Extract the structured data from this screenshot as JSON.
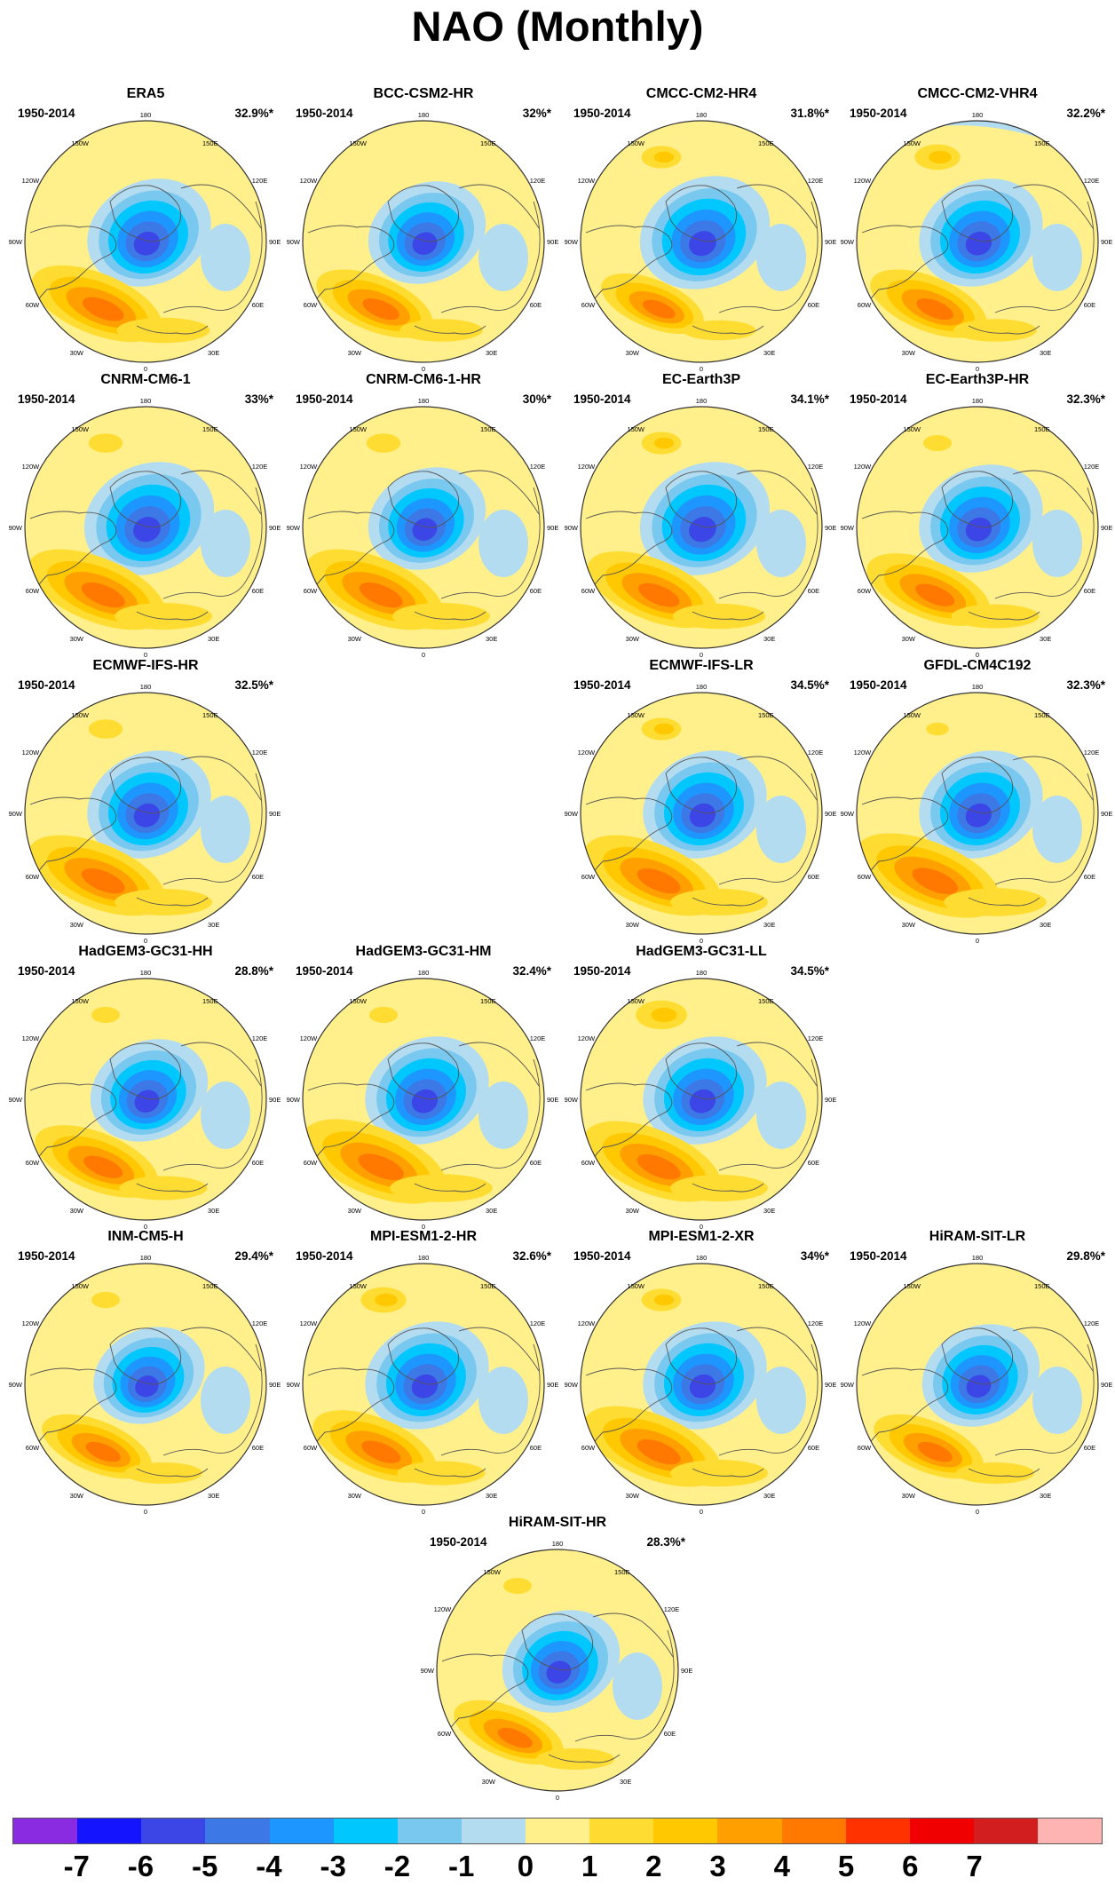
{
  "title": "NAO (Monthly)",
  "period": "1950-2014",
  "map_labels": {
    "top": "180",
    "bottom": "0",
    "upper_left": "150W",
    "upper_right": "150E",
    "left_upper": "120W",
    "right_upper": "120E",
    "left": "90W",
    "right": "90E",
    "left_lower": "60W",
    "right_lower": "60E",
    "lower_left": "30W",
    "lower_right": "30E"
  },
  "panels": [
    {
      "model": "ERA5",
      "pct": "32.9%*",
      "neg": 1.0,
      "pos": 0.95,
      "pac": 0.0,
      "pac_neg": 0.0
    },
    {
      "model": "BCC-CSM2-HR",
      "pct": "32%*",
      "neg": 0.95,
      "pos": 0.85,
      "pac": 0.0,
      "pac_neg": 0.0
    },
    {
      "model": "CMCC-CM2-HR4",
      "pct": "31.8%*",
      "neg": 1.05,
      "pos": 0.75,
      "pac": 0.7,
      "pac_neg": 0.0
    },
    {
      "model": "CMCC-CM2-VHR4",
      "pct": "32.2%*",
      "neg": 1.0,
      "pos": 0.85,
      "pac": 0.8,
      "pac_neg": 1.0
    },
    {
      "model": "CNRM-CM6-1",
      "pct": "33%*",
      "neg": 1.05,
      "pos": 1.0,
      "pac": 0.6,
      "pac_neg": 0.0
    },
    {
      "model": "CNRM-CM6-1-HR",
      "pct": "30%*",
      "neg": 0.95,
      "pos": 1.0,
      "pac": 0.6,
      "pac_neg": 0.0
    },
    {
      "model": "EC-Earth3P",
      "pct": "34.1%*",
      "neg": 1.05,
      "pos": 0.95,
      "pac": 0.7,
      "pac_neg": 0.0
    },
    {
      "model": "EC-Earth3P-HR",
      "pct": "32.3%*",
      "neg": 1.0,
      "pos": 0.9,
      "pac": 0.5,
      "pac_neg": 0.0
    },
    {
      "model": "ECMWF-IFS-HR",
      "pct": "32.5%*",
      "neg": 1.0,
      "pos": 1.0,
      "pac": 0.6,
      "pac_neg": 0.0
    },
    {
      "model": "ECMWF-IFS-LR",
      "pct": "34.5%*",
      "neg": 1.0,
      "pos": 1.0,
      "pac": 0.7,
      "pac_neg": 0.0
    },
    {
      "model": "GFDL-CM4C192",
      "pct": "32.3%*",
      "neg": 1.0,
      "pos": 1.05,
      "pac": 0.4,
      "pac_neg": 0.0
    },
    {
      "model": "HadGEM3-GC31-HH",
      "pct": "28.8%*",
      "neg": 0.95,
      "pos": 0.9,
      "pac": 0.5,
      "pac_neg": 0.0
    },
    {
      "model": "HadGEM3-GC31-HM",
      "pct": "32.4%*",
      "neg": 1.0,
      "pos": 1.05,
      "pac": 0.5,
      "pac_neg": 0.0
    },
    {
      "model": "HadGEM3-GC31-LL",
      "pct": "34.5%*",
      "neg": 1.0,
      "pos": 1.0,
      "pac": 0.9,
      "pac_neg": 0.0
    },
    {
      "model": "INM-CM5-H",
      "pct": "29.4%*",
      "neg": 0.9,
      "pos": 0.8,
      "pac": 0.5,
      "pac_neg": 0.0
    },
    {
      "model": "MPI-ESM1-2-HR",
      "pct": "32.6%*",
      "neg": 1.0,
      "pos": 0.9,
      "pac": 0.8,
      "pac_neg": 0.0
    },
    {
      "model": "MPI-ESM1-2-XR",
      "pct": "34%*",
      "neg": 1.0,
      "pos": 1.0,
      "pac": 0.7,
      "pac_neg": 0.0
    },
    {
      "model": "HiRAM-SIT-LR",
      "pct": "29.8%*",
      "neg": 0.95,
      "pos": 0.8,
      "pac": 0.0,
      "pac_neg": 0.0
    },
    {
      "model": "HiRAM-SIT-HR",
      "pct": "28.3%*",
      "neg": 0.95,
      "pos": 0.8,
      "pac": 0.5,
      "pac_neg": 0.0
    }
  ],
  "colorbar": {
    "colors": [
      "#8a2be2",
      "#1414ff",
      "#3c46e6",
      "#3c78e6",
      "#1e96ff",
      "#00c8ff",
      "#78c8f0",
      "#b4dcf0",
      "#fff08c",
      "#ffdc32",
      "#ffc800",
      "#ffa000",
      "#ff7800",
      "#ff3200",
      "#f00000",
      "#d21e1e",
      "#ffb4b4"
    ],
    "labels": [
      "-7",
      "-6",
      "-5",
      "-4",
      "-3",
      "-2",
      "-1",
      "0",
      "1",
      "2",
      "3",
      "4",
      "5",
      "6",
      "7"
    ]
  }
}
